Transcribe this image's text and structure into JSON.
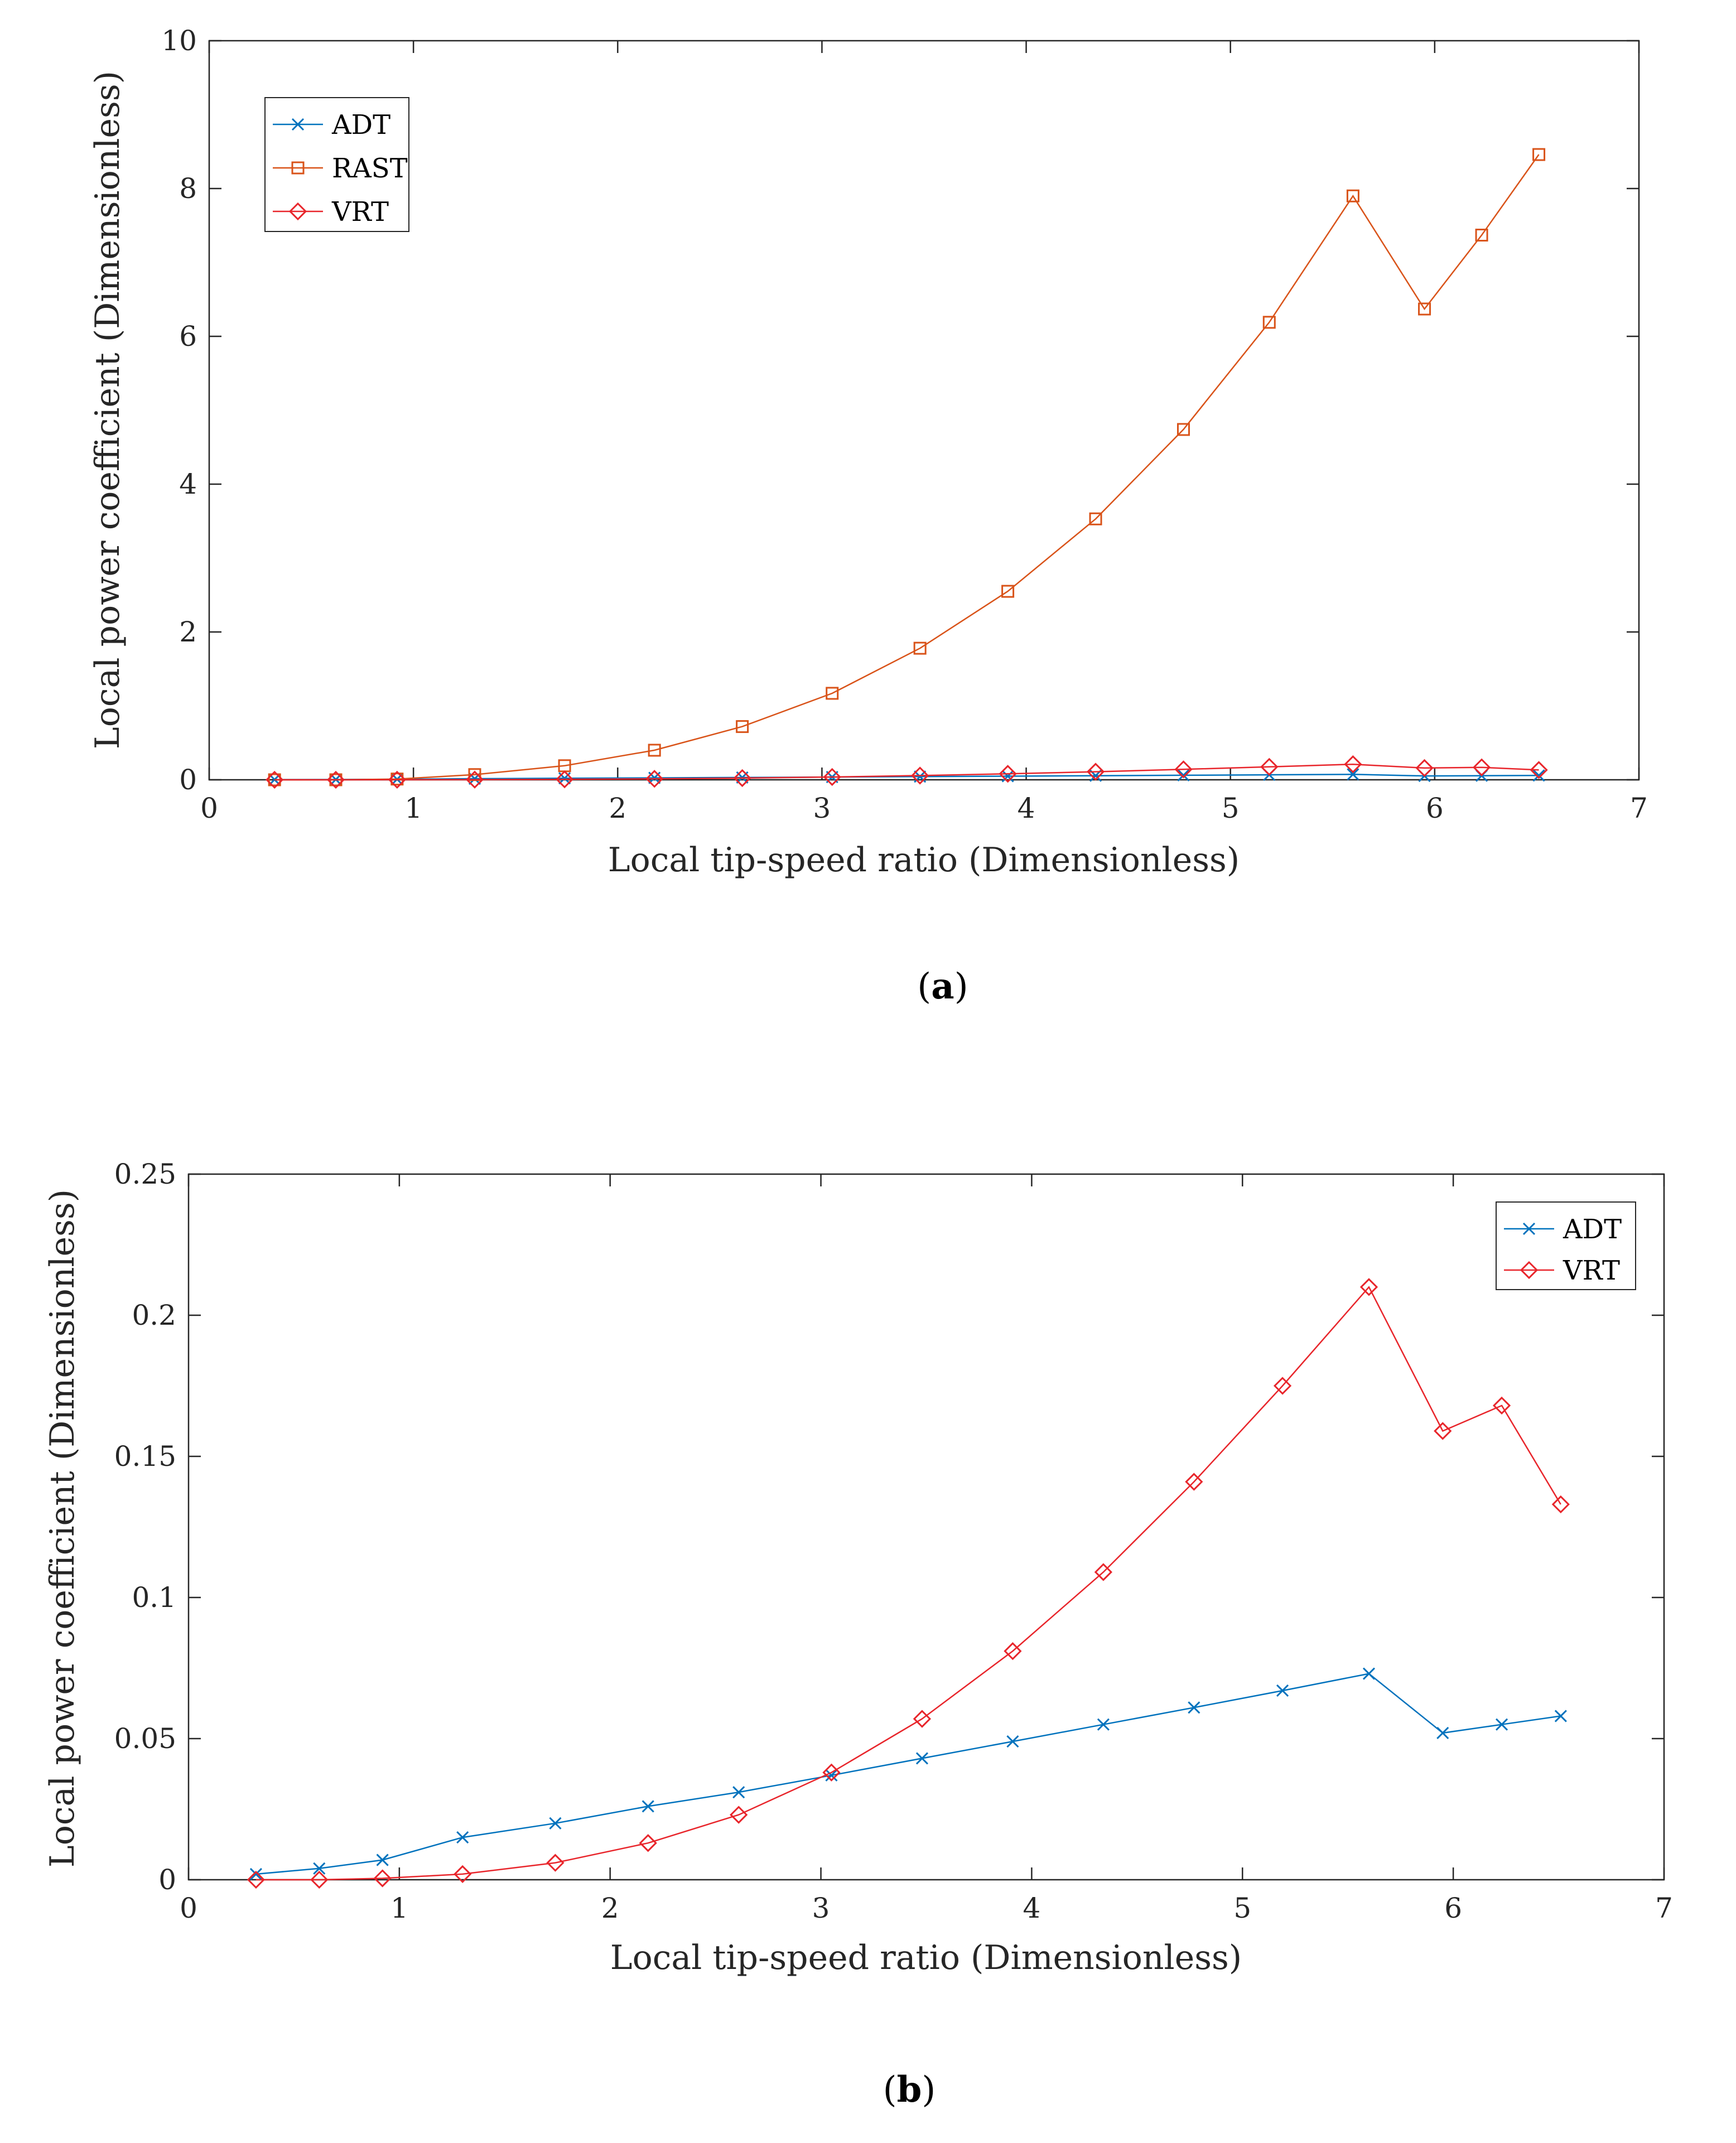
{
  "colors": {
    "ADT": "#0072BD",
    "RAST": "#D95319",
    "VRT": "#E8252B",
    "axis": "#262626"
  },
  "chart_data": [
    {
      "id": "a",
      "type": "line",
      "caption_letter": "a",
      "xlabel": "Local tip-speed ratio (Dimensionless)",
      "ylabel": "Local power coefficient (Dimensionless)",
      "xlim": [
        0,
        7
      ],
      "ylim": [
        0,
        10
      ],
      "xticks": [
        0,
        1,
        2,
        3,
        4,
        5,
        6,
        7
      ],
      "yticks": [
        0,
        2,
        4,
        6,
        8,
        10
      ],
      "ytick_labels": [
        "0",
        "2",
        "4",
        "6",
        "8",
        "10"
      ],
      "legend_position": "top-left",
      "x": [
        0.32,
        0.62,
        0.92,
        1.3,
        1.74,
        2.18,
        2.61,
        3.05,
        3.48,
        3.91,
        4.34,
        4.77,
        5.19,
        5.6,
        5.95,
        6.23,
        6.51
      ],
      "series": [
        {
          "name": "ADT",
          "marker": "x",
          "color_key": "ADT",
          "values": [
            0.002,
            0.004,
            0.007,
            0.015,
            0.02,
            0.026,
            0.031,
            0.037,
            0.043,
            0.049,
            0.055,
            0.061,
            0.067,
            0.073,
            0.052,
            0.055,
            0.058
          ]
        },
        {
          "name": "RAST",
          "marker": "square",
          "color_key": "RAST",
          "values": [
            0.0,
            0.0,
            0.01,
            0.07,
            0.19,
            0.4,
            0.72,
            1.17,
            1.78,
            2.55,
            3.53,
            4.74,
            6.19,
            7.9,
            6.37,
            7.37,
            8.46
          ]
        },
        {
          "name": "VRT",
          "marker": "diamond",
          "color_key": "VRT",
          "values": [
            0.0,
            0.0,
            0.0005,
            0.002,
            0.006,
            0.013,
            0.023,
            0.038,
            0.057,
            0.081,
            0.109,
            0.141,
            0.175,
            0.21,
            0.159,
            0.168,
            0.133
          ]
        }
      ]
    },
    {
      "id": "b",
      "type": "line",
      "caption_letter": "b",
      "xlabel": "Local tip-speed ratio (Dimensionless)",
      "ylabel": "Local power coefficient (Dimensionless)",
      "xlim": [
        0,
        7
      ],
      "ylim": [
        0,
        0.25
      ],
      "xticks": [
        0,
        1,
        2,
        3,
        4,
        5,
        6,
        7
      ],
      "yticks": [
        0,
        0.05,
        0.1,
        0.15,
        0.2,
        0.25
      ],
      "ytick_labels": [
        "0",
        "0.05",
        "0.1",
        "0.15",
        "0.2",
        "0.25"
      ],
      "legend_position": "top-right",
      "x": [
        0.32,
        0.62,
        0.92,
        1.3,
        1.74,
        2.18,
        2.61,
        3.05,
        3.48,
        3.91,
        4.34,
        4.77,
        5.19,
        5.6,
        5.95,
        6.23,
        6.51
      ],
      "series": [
        {
          "name": "ADT",
          "marker": "x",
          "color_key": "ADT",
          "values": [
            0.002,
            0.004,
            0.007,
            0.015,
            0.02,
            0.026,
            0.031,
            0.037,
            0.043,
            0.049,
            0.055,
            0.061,
            0.067,
            0.073,
            0.052,
            0.055,
            0.058
          ]
        },
        {
          "name": "VRT",
          "marker": "diamond",
          "color_key": "VRT",
          "values": [
            0.0,
            0.0,
            0.0005,
            0.002,
            0.006,
            0.013,
            0.023,
            0.038,
            0.057,
            0.081,
            0.109,
            0.141,
            0.175,
            0.21,
            0.159,
            0.168,
            0.133
          ]
        }
      ]
    }
  ]
}
